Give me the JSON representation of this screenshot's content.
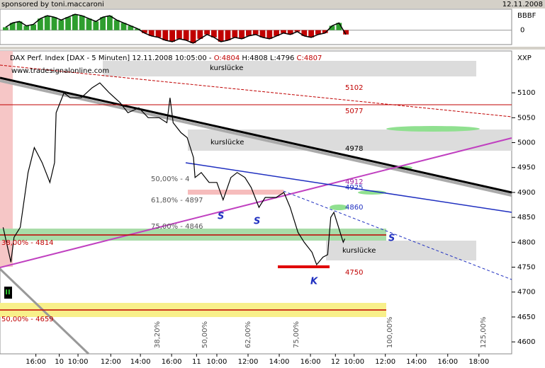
{
  "header": {
    "sponsor": "sponsored by toni.maccaroni",
    "date": "12.11.2008"
  },
  "oscillator": {
    "type": "bar",
    "label": "BBBF",
    "ylim": [
      -1,
      1.45
    ],
    "yticks": [
      0
    ],
    "pos_color": "#2e9e2e",
    "neg_color": "#c00000",
    "values": [
      0.2,
      0.5,
      0.6,
      0.3,
      0.4,
      0.8,
      1.0,
      0.9,
      0.7,
      0.9,
      1.1,
      1.0,
      0.8,
      0.6,
      0.9,
      1.0,
      0.7,
      0.5,
      0.3,
      0.1,
      -0.2,
      -0.4,
      -0.5,
      -0.7,
      -0.8,
      -0.6,
      -0.7,
      -0.9,
      -0.6,
      -0.3,
      -0.5,
      -0.8,
      -0.7,
      -0.5,
      -0.6,
      -0.4,
      -0.3,
      -0.5,
      -0.6,
      -0.4,
      -0.2,
      -0.3,
      -0.1,
      -0.4,
      -0.5,
      -0.3,
      -0.2,
      0.3,
      0.5,
      -0.3
    ]
  },
  "chart_data": {
    "type": "line",
    "title": "DAX Perf. Index [DAX - 5 Minuten] 12.11.2008 10:05:00 -",
    "quote": [
      "O:4804",
      "H:4808",
      "L:4796",
      "C:4807"
    ],
    "source": "www.tradesignalonline.com",
    "symbol": "XXP",
    "color": "#000000",
    "x": [
      -3.6,
      -3.1,
      -2.9,
      -2.5,
      -2.0,
      -1.6,
      -1.1,
      -0.6,
      -0.3,
      -0.2,
      0.3,
      0.7,
      1.4,
      2.1,
      2.6,
      3.2,
      3.9,
      4.4,
      5.1,
      5.7,
      6.4,
      6.9,
      7.1,
      7.3,
      7.8,
      8.2,
      8.6,
      8.7,
      9.1,
      9.6,
      10.1,
      10.5,
      11.0,
      11.4,
      11.9,
      12.3,
      12.8,
      13.2,
      13.9,
      14.4,
      14.8,
      15.3,
      15.7,
      16.2,
      16.5,
      16.9,
      17.2,
      17.4,
      17.6,
      17.9,
      18.2,
      18.3
    ],
    "values": [
      4830,
      4760,
      4810,
      4830,
      4940,
      4990,
      4960,
      4920,
      4960,
      5060,
      5100,
      5090,
      5090,
      5110,
      5120,
      5100,
      5080,
      5060,
      5070,
      5050,
      5050,
      5040,
      5090,
      5040,
      5020,
      5010,
      4970,
      4930,
      4940,
      4920,
      4920,
      4885,
      4930,
      4940,
      4930,
      4910,
      4870,
      4890,
      4890,
      4900,
      4870,
      4820,
      4800,
      4780,
      4755,
      4770,
      4775,
      4850,
      4860,
      4830,
      4800,
      4807
    ],
    "xlim": [
      -3.8,
      29
    ],
    "ylim": [
      4576,
      5184
    ],
    "yticks": [
      4600,
      4650,
      4700,
      4750,
      4800,
      4850,
      4900,
      4950,
      5000,
      5050,
      5100
    ],
    "xticks": [
      {
        "value": -1.5,
        "label": "16:00"
      },
      {
        "value": 0,
        "label": "10"
      },
      {
        "value": 1.2,
        "label": "10:00"
      },
      {
        "value": 3.3,
        "label": "12:00"
      },
      {
        "value": 5.2,
        "label": "14:00"
      },
      {
        "value": 7.2,
        "label": "16:00"
      },
      {
        "value": 8.8,
        "label": "11"
      },
      {
        "value": 10.1,
        "label": "10:00"
      },
      {
        "value": 12.1,
        "label": "12:00"
      },
      {
        "value": 14.1,
        "label": "14:00"
      },
      {
        "value": 16.1,
        "label": "16:00"
      },
      {
        "value": 17.7,
        "label": "12"
      },
      {
        "value": 18.9,
        "label": "10:00"
      },
      {
        "value": 20.9,
        "label": "12:00"
      },
      {
        "value": 22.9,
        "label": "14:00"
      },
      {
        "value": 24.9,
        "label": "16:00"
      },
      {
        "value": 26.9,
        "label": "18:00"
      }
    ],
    "annotations": [
      "kurslücke",
      "kurslücke",
      "kurslücke",
      "5102",
      "5077",
      "4978",
      "4912",
      "4925",
      "4860",
      "4750",
      "50,00% - 4",
      "61,80% - 4897",
      "75,00% - 4846",
      "38,00% - 4814",
      "50,00% - 4659",
      "S",
      "S",
      "S",
      "K"
    ],
    "fib_labels": [
      "38,20%",
      "50,00%",
      "62,00%",
      "75,00%",
      "100,00%",
      "125,00%"
    ]
  }
}
